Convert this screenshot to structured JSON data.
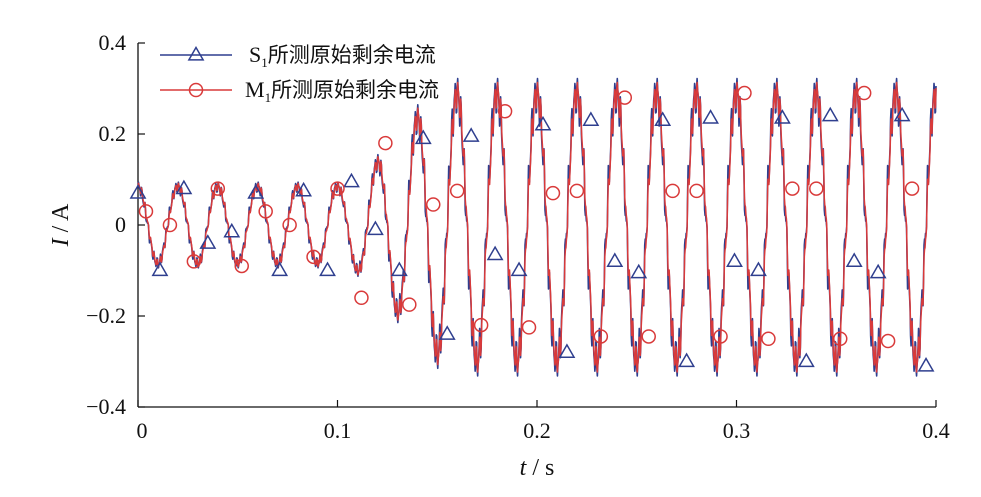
{
  "chart_data": {
    "type": "line",
    "xlabel": "t / s",
    "xlabel_italic": "t",
    "xlabel_unit": "s",
    "ylabel": "I / A",
    "ylabel_italic": "I",
    "ylabel_unit": "A",
    "xlim": [
      0,
      0.4
    ],
    "ylim": [
      -0.4,
      0.4
    ],
    "xticks": [
      0,
      0.1,
      0.2,
      0.3,
      0.4
    ],
    "xtick_labels": [
      "0",
      "0.1",
      "0.2",
      "0.3",
      "0.4"
    ],
    "yticks": [
      -0.4,
      -0.2,
      0,
      0.2,
      0.4
    ],
    "ytick_labels": [
      "−0.4",
      "−0.2",
      "0",
      "0.2",
      "0.4"
    ],
    "grid": false,
    "legend_position": "top-left",
    "signal": {
      "frequency_hz": 50,
      "amplitude_initial": 0.085,
      "amplitude_final": 0.295,
      "offset_initial": 0,
      "offset_final": -0.005,
      "transition_start_s": 0.1,
      "transition_end_s": 0.16
    },
    "series": [
      {
        "name": "S1所测原始剩余电流",
        "label_main": "S",
        "label_sub": "1",
        "label_rest": "所测原始剩余电流",
        "color": "#2f3f8f",
        "marker": "triangle",
        "marker_points": [
          [
            0.0,
            0.07
          ],
          [
            0.011,
            -0.1
          ],
          [
            0.023,
            0.08
          ],
          [
            0.035,
            -0.04
          ],
          [
            0.047,
            -0.015
          ],
          [
            0.059,
            0.07
          ],
          [
            0.071,
            -0.1
          ],
          [
            0.083,
            0.075
          ],
          [
            0.095,
            -0.1
          ],
          [
            0.107,
            0.095
          ],
          [
            0.119,
            -0.01
          ],
          [
            0.131,
            -0.1
          ],
          [
            0.143,
            0.19
          ],
          [
            0.155,
            -0.24
          ],
          [
            0.167,
            0.195
          ],
          [
            0.179,
            -0.065
          ],
          [
            0.191,
            -0.1
          ],
          [
            0.203,
            0.22
          ],
          [
            0.215,
            -0.28
          ],
          [
            0.227,
            0.23
          ],
          [
            0.239,
            -0.08
          ],
          [
            0.251,
            -0.105
          ],
          [
            0.263,
            0.23
          ],
          [
            0.275,
            -0.3
          ],
          [
            0.287,
            0.235
          ],
          [
            0.299,
            -0.08
          ],
          [
            0.311,
            -0.1
          ],
          [
            0.323,
            0.235
          ],
          [
            0.335,
            -0.3
          ],
          [
            0.347,
            0.24
          ],
          [
            0.359,
            -0.08
          ],
          [
            0.371,
            -0.105
          ],
          [
            0.383,
            0.24
          ],
          [
            0.395,
            -0.31
          ]
        ]
      },
      {
        "name": "M1所测原始剩余电流",
        "label_main": "M",
        "label_sub": "1",
        "label_rest": "所测原始剩余电流",
        "color": "#d93a3a",
        "marker": "circle",
        "marker_points": [
          [
            0.004,
            0.03
          ],
          [
            0.016,
            0.0
          ],
          [
            0.028,
            -0.08
          ],
          [
            0.04,
            0.08
          ],
          [
            0.052,
            -0.09
          ],
          [
            0.064,
            0.03
          ],
          [
            0.076,
            0.0
          ],
          [
            0.088,
            -0.07
          ],
          [
            0.1,
            0.08
          ],
          [
            0.112,
            -0.16
          ],
          [
            0.124,
            0.18
          ],
          [
            0.136,
            -0.175
          ],
          [
            0.148,
            0.045
          ],
          [
            0.16,
            0.075
          ],
          [
            0.172,
            -0.22
          ],
          [
            0.184,
            0.25
          ],
          [
            0.196,
            -0.225
          ],
          [
            0.208,
            0.07
          ],
          [
            0.22,
            0.075
          ],
          [
            0.232,
            -0.245
          ],
          [
            0.244,
            0.28
          ],
          [
            0.256,
            -0.245
          ],
          [
            0.268,
            0.075
          ],
          [
            0.28,
            0.075
          ],
          [
            0.292,
            -0.245
          ],
          [
            0.304,
            0.29
          ],
          [
            0.316,
            -0.25
          ],
          [
            0.328,
            0.08
          ],
          [
            0.34,
            0.08
          ],
          [
            0.352,
            -0.25
          ],
          [
            0.364,
            0.29
          ],
          [
            0.376,
            -0.255
          ],
          [
            0.388,
            0.08
          ]
        ]
      }
    ]
  }
}
